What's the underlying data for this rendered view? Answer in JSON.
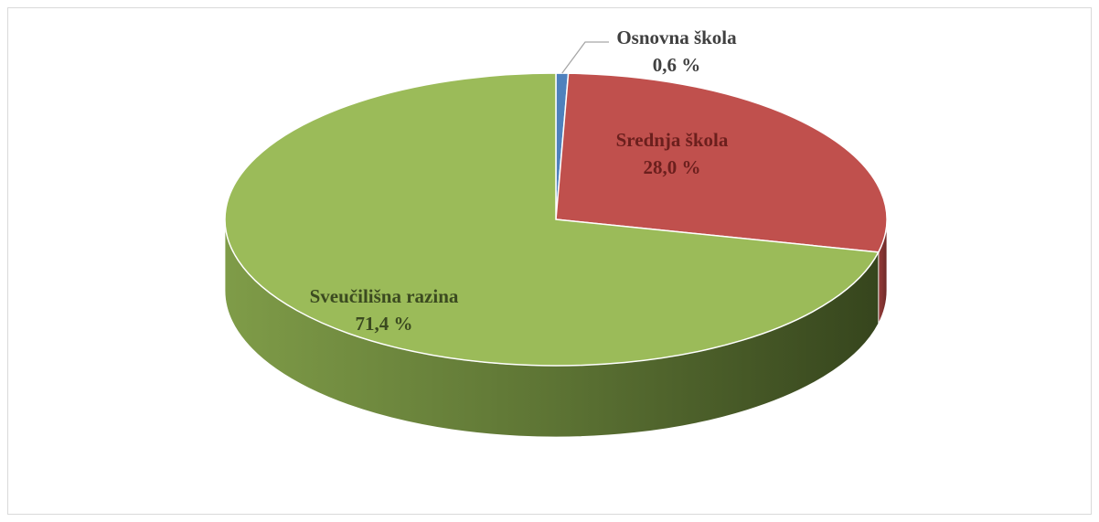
{
  "chart_data": {
    "type": "pie",
    "categories": [
      "Osnovna škola",
      "Srednja škola",
      "Sveučilišna razina"
    ],
    "values": [
      0.6,
      28.0,
      71.4
    ],
    "value_labels": [
      "0,6 %",
      "28,0 %",
      "71,4 %"
    ],
    "colors": [
      "#4f81bd",
      "#c0504d",
      "#9bbb59"
    ]
  }
}
